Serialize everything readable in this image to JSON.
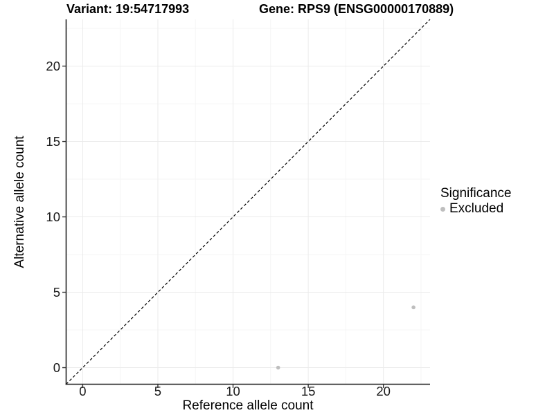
{
  "header": {
    "title_parts": [
      "Variant: 19:54717993",
      "Gene: RPS9 (ENSG00000170889)"
    ]
  },
  "chart_data": {
    "type": "scatter",
    "title": "Variant: 19:54717993   Gene: RPS9 (ENSG00000170889)",
    "title_parts": [
      "Variant: 19:54717993",
      "Gene: RPS9 (ENSG00000170889)"
    ],
    "xlabel": "Reference allele count",
    "ylabel": "Alternative allele count",
    "xlim": [
      -1.1,
      23.1
    ],
    "ylim": [
      -1.1,
      23.1
    ],
    "xticks": [
      0,
      5,
      10,
      15,
      20
    ],
    "yticks": [
      0,
      5,
      10,
      15,
      20
    ],
    "minor_ticks": [
      2.5,
      7.5,
      12.5,
      17.5,
      22.5
    ],
    "grid": true,
    "identity_line": {
      "style": "dashed",
      "color": "#000000",
      "from": -1.1,
      "to": 23.1
    },
    "series": [
      {
        "name": "Excluded",
        "color": "#BEBEBE",
        "points": [
          [
            13,
            0
          ],
          [
            22,
            4
          ]
        ]
      }
    ],
    "legend": {
      "title": "Significance",
      "position": "right",
      "entries": [
        {
          "label": "Excluded",
          "color": "#BEBEBE",
          "marker": "circle"
        }
      ]
    },
    "colors": {
      "grid_major": "#EBEBEB",
      "grid_minor": "#F5F5F5",
      "axis_line": "#1F1F1F",
      "tick_mark": "#333333",
      "tick_text": "#1A1A1A",
      "point": "#BEBEBE"
    }
  }
}
